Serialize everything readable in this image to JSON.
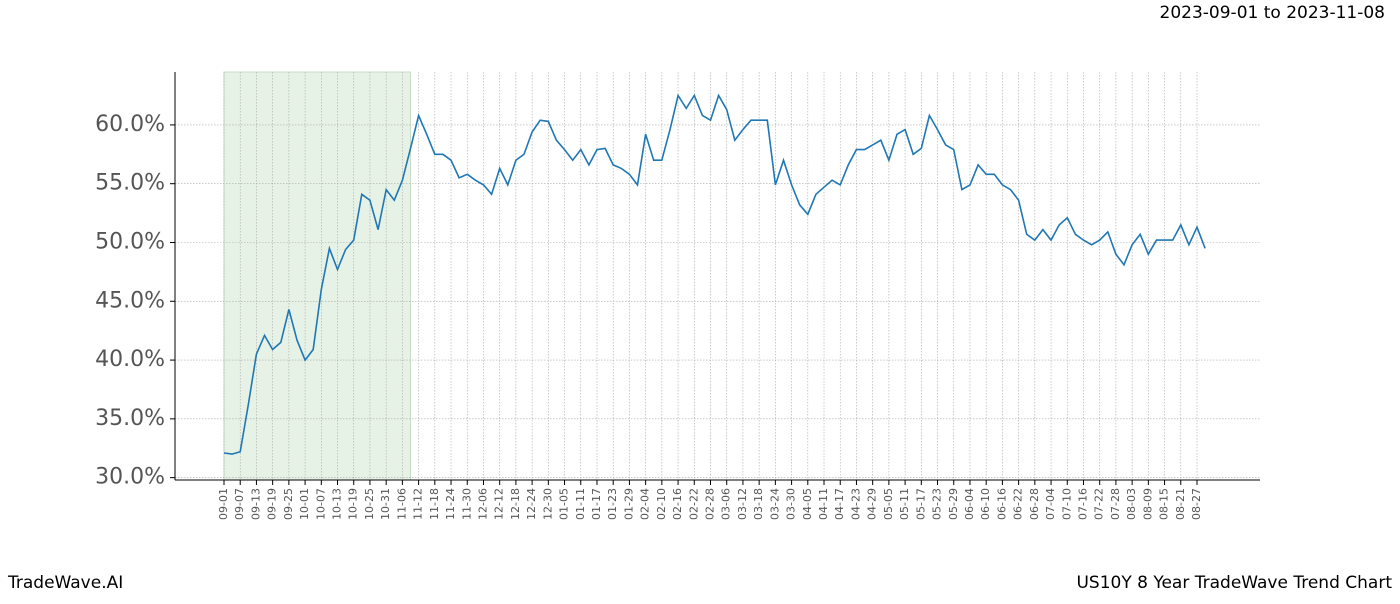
{
  "chart_data": {
    "type": "line",
    "subtitle": "2023-09-01 to 2023-11-08",
    "brand": "TradeWave.AI",
    "title": "US10Y 8 Year TradeWave Trend Chart",
    "categories": [
      "09-01",
      null,
      "09-07",
      null,
      "09-13",
      null,
      "09-19",
      null,
      "09-25",
      null,
      "10-01",
      null,
      "10-07",
      null,
      "10-13",
      null,
      "10-19",
      null,
      "10-25",
      null,
      "10-31",
      null,
      "11-06",
      null,
      "11-12",
      null,
      "11-18",
      null,
      "11-24",
      null,
      "11-30",
      null,
      "12-06",
      null,
      "12-12",
      null,
      "12-18",
      null,
      "12-24",
      null,
      "12-30",
      null,
      "01-05",
      null,
      "01-11",
      null,
      "01-17",
      null,
      "01-23",
      null,
      "01-29",
      null,
      "02-04",
      null,
      "02-10",
      null,
      "02-16",
      null,
      "02-22",
      null,
      "02-28",
      null,
      "03-06",
      null,
      "03-12",
      null,
      "03-18",
      null,
      "03-24",
      null,
      "03-30",
      null,
      "04-05",
      null,
      "04-11",
      null,
      "04-17",
      null,
      "04-23",
      null,
      "04-29",
      null,
      "05-05",
      null,
      "05-11",
      null,
      "05-17",
      null,
      "05-23",
      null,
      "05-29",
      null,
      "06-04",
      null,
      "06-10",
      null,
      "06-16",
      null,
      "06-22",
      null,
      "06-28",
      null,
      "07-04",
      null,
      "07-10",
      null,
      "07-16",
      null,
      "07-22",
      null,
      "07-28",
      null,
      "08-03",
      null,
      "08-09",
      null,
      "08-15",
      null,
      "08-21",
      null,
      "08-27",
      null
    ],
    "series": [
      {
        "color": "#1f77b4",
        "values": [
          32.1,
          32.0,
          32.2,
          36.2,
          40.5,
          42.1,
          40.9,
          41.5,
          44.3,
          41.7,
          40.0,
          40.9,
          46.0,
          49.5,
          47.7,
          49.4,
          50.2,
          54.1,
          53.6,
          51.1,
          54.5,
          53.6,
          55.3,
          58.0,
          60.8,
          59.2,
          57.5,
          57.5,
          57.0,
          55.5,
          55.8,
          55.3,
          54.9,
          54.1,
          56.3,
          54.9,
          57.0,
          57.5,
          59.4,
          60.4,
          60.3,
          58.7,
          57.9,
          57.0,
          57.9,
          56.6,
          57.9,
          58.0,
          56.6,
          56.3,
          55.8,
          54.9,
          59.2,
          57.0,
          57.0,
          59.6,
          62.5,
          61.4,
          62.5,
          60.8,
          60.4,
          62.5,
          61.3,
          58.7,
          59.6,
          60.4,
          60.4,
          60.4,
          54.9,
          57.0,
          54.9,
          53.2,
          52.4,
          54.1,
          54.7,
          55.3,
          54.9,
          56.6,
          57.9,
          57.9,
          58.3,
          58.7,
          57.0,
          59.2,
          59.6,
          57.5,
          58.0,
          60.8,
          59.6,
          58.3,
          57.9,
          54.5,
          54.9,
          56.6,
          55.8,
          55.8,
          54.9,
          54.5,
          53.6,
          50.7,
          50.2,
          51.1,
          50.2,
          51.5,
          52.1,
          50.7,
          50.2,
          49.8,
          50.2,
          50.9,
          49.0,
          48.1,
          49.8,
          50.7,
          49.0,
          50.2,
          50.2,
          50.2,
          51.5,
          49.8,
          51.3,
          49.5
        ]
      }
    ],
    "ylim": [
      29.8,
      64.5
    ],
    "yticks": [
      {
        "value": 30,
        "label": "30.0%"
      },
      {
        "value": 35,
        "label": "35.0%"
      },
      {
        "value": 40,
        "label": "40.0%"
      },
      {
        "value": 45,
        "label": "45.0%"
      },
      {
        "value": 50,
        "label": "50.0%"
      },
      {
        "value": 55,
        "label": "55.0%"
      },
      {
        "value": 60,
        "label": "60.0%"
      }
    ],
    "grid": true,
    "highlight": {
      "start_index": 0,
      "end_index": 23,
      "color": "#e6f2e6"
    }
  }
}
